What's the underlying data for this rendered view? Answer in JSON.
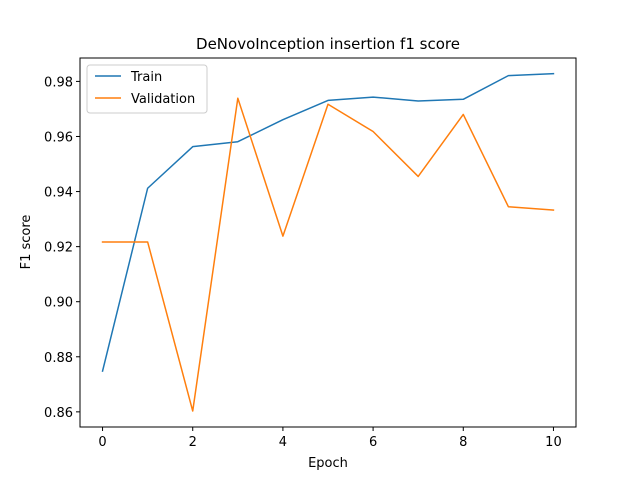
{
  "chart_data": {
    "type": "line",
    "title": "DeNovoInception insertion f1 score",
    "xlabel": "Epoch",
    "ylabel": "F1 score",
    "x": [
      0,
      1,
      2,
      3,
      4,
      5,
      6,
      7,
      8,
      9,
      10
    ],
    "xticks": [
      0,
      2,
      4,
      6,
      8,
      10
    ],
    "yticks": [
      0.86,
      0.88,
      0.9,
      0.92,
      0.94,
      0.96,
      0.98
    ],
    "ytick_labels": [
      "0.86",
      "0.88",
      "0.90",
      "0.92",
      "0.94",
      "0.96",
      "0.98"
    ],
    "xlim": [
      -0.5,
      10.5
    ],
    "ylim": [
      0.8545,
      0.9885
    ],
    "grid": false,
    "legend_position": "top-left",
    "series": [
      {
        "name": "Train",
        "color": "#1f77b4",
        "values": [
          0.8748,
          0.9412,
          0.9563,
          0.9581,
          0.9661,
          0.9731,
          0.9743,
          0.9729,
          0.9735,
          0.9821,
          0.9828
        ]
      },
      {
        "name": "Validation",
        "color": "#ff7f0e",
        "values": [
          0.9217,
          0.9217,
          0.8603,
          0.9739,
          0.9238,
          0.9717,
          0.9618,
          0.9455,
          0.968,
          0.9345,
          0.9333
        ]
      }
    ]
  }
}
